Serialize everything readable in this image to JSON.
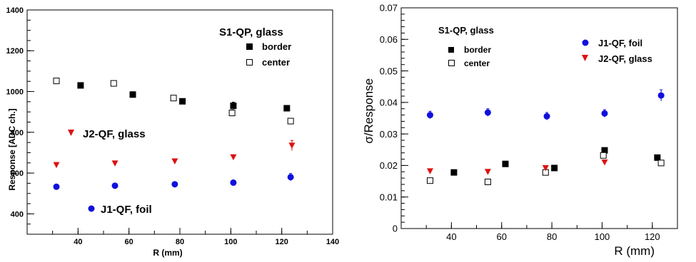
{
  "chart_data": [
    {
      "type": "scatter",
      "xlabel": "R (mm)",
      "ylabel": "Response [ADC ch.]",
      "xlim": [
        20,
        140
      ],
      "ylim": [
        300,
        1400
      ],
      "x_ticks": [
        "40",
        "60",
        "80",
        "100",
        "120",
        "140"
      ],
      "y_ticks": [
        "400",
        "600",
        "800",
        "1000",
        "1200",
        "1400"
      ],
      "legend_title": "S1-QP, glass",
      "series": [
        {
          "name": "border",
          "marker": "filled-square",
          "color": "#000000",
          "x": [
            41,
            61.5,
            81,
            101,
            122
          ],
          "y": [
            1030,
            985,
            952,
            930,
            918
          ],
          "err": [
            10,
            14,
            12,
            18,
            14
          ]
        },
        {
          "name": "center",
          "marker": "open-square",
          "color": "#000000",
          "x": [
            31.5,
            54,
            77.5,
            100.5,
            123.5
          ],
          "y": [
            1052,
            1040,
            968,
            895,
            855
          ],
          "err": [
            0,
            0,
            0,
            15,
            0
          ]
        },
        {
          "name": "J2-QF, glass",
          "marker": "triangle-down",
          "color": "#dd1111",
          "x": [
            31.5,
            54.5,
            78,
            101,
            124
          ],
          "y": [
            640,
            648,
            658,
            678,
            735
          ],
          "err": [
            8,
            10,
            10,
            12,
            25
          ]
        },
        {
          "name": "J1-QF, foil",
          "marker": "circle",
          "color": "#1010dd",
          "x": [
            31.5,
            54.5,
            78,
            101,
            123.5
          ],
          "y": [
            533,
            538,
            545,
            553,
            580
          ],
          "err": [
            12,
            12,
            12,
            12,
            18
          ]
        }
      ],
      "annotations": [
        "J2-QF, glass",
        "J1-QF, foil"
      ]
    },
    {
      "type": "scatter",
      "xlabel": "R (mm)",
      "ylabel": "σ/Response",
      "xlim": [
        20,
        130
      ],
      "ylim": [
        0,
        0.07
      ],
      "x_ticks": [
        "40",
        "60",
        "80",
        "100",
        "120"
      ],
      "y_ticks": [
        "0",
        "0.01",
        "0.02",
        "0.03",
        "0.04",
        "0.05",
        "0.06",
        "0.07"
      ],
      "legend_title": "S1-QP, glass",
      "series": [
        {
          "name": "border",
          "marker": "filled-square",
          "color": "#000000",
          "x": [
            41,
            61.5,
            81,
            101,
            122
          ],
          "y": [
            0.0178,
            0.0205,
            0.0192,
            0.0248,
            0.0225
          ],
          "err": [
            0,
            0,
            0,
            0,
            0
          ]
        },
        {
          "name": "center",
          "marker": "open-square",
          "color": "#000000",
          "x": [
            31.5,
            54.5,
            77.5,
            100.5,
            123.5
          ],
          "y": [
            0.0152,
            0.0148,
            0.0178,
            0.0232,
            0.0208
          ],
          "err": [
            0,
            0,
            0,
            0,
            0
          ]
        },
        {
          "name": "J1-QF, foil",
          "marker": "circle",
          "color": "#1010dd",
          "x": [
            31.5,
            54.5,
            78,
            101,
            123.5
          ],
          "y": [
            0.036,
            0.0368,
            0.0356,
            0.0365,
            0.0422
          ],
          "err": [
            0.0012,
            0.0012,
            0.0012,
            0.0012,
            0.0018
          ]
        },
        {
          "name": "J2-QF, glass",
          "marker": "triangle-down",
          "color": "#dd1111",
          "x": [
            31.5,
            54.5,
            77.5,
            101
          ],
          "y": [
            0.0182,
            0.018,
            0.0192,
            0.021
          ],
          "err": [
            0,
            0,
            0,
            0
          ]
        }
      ]
    }
  ]
}
